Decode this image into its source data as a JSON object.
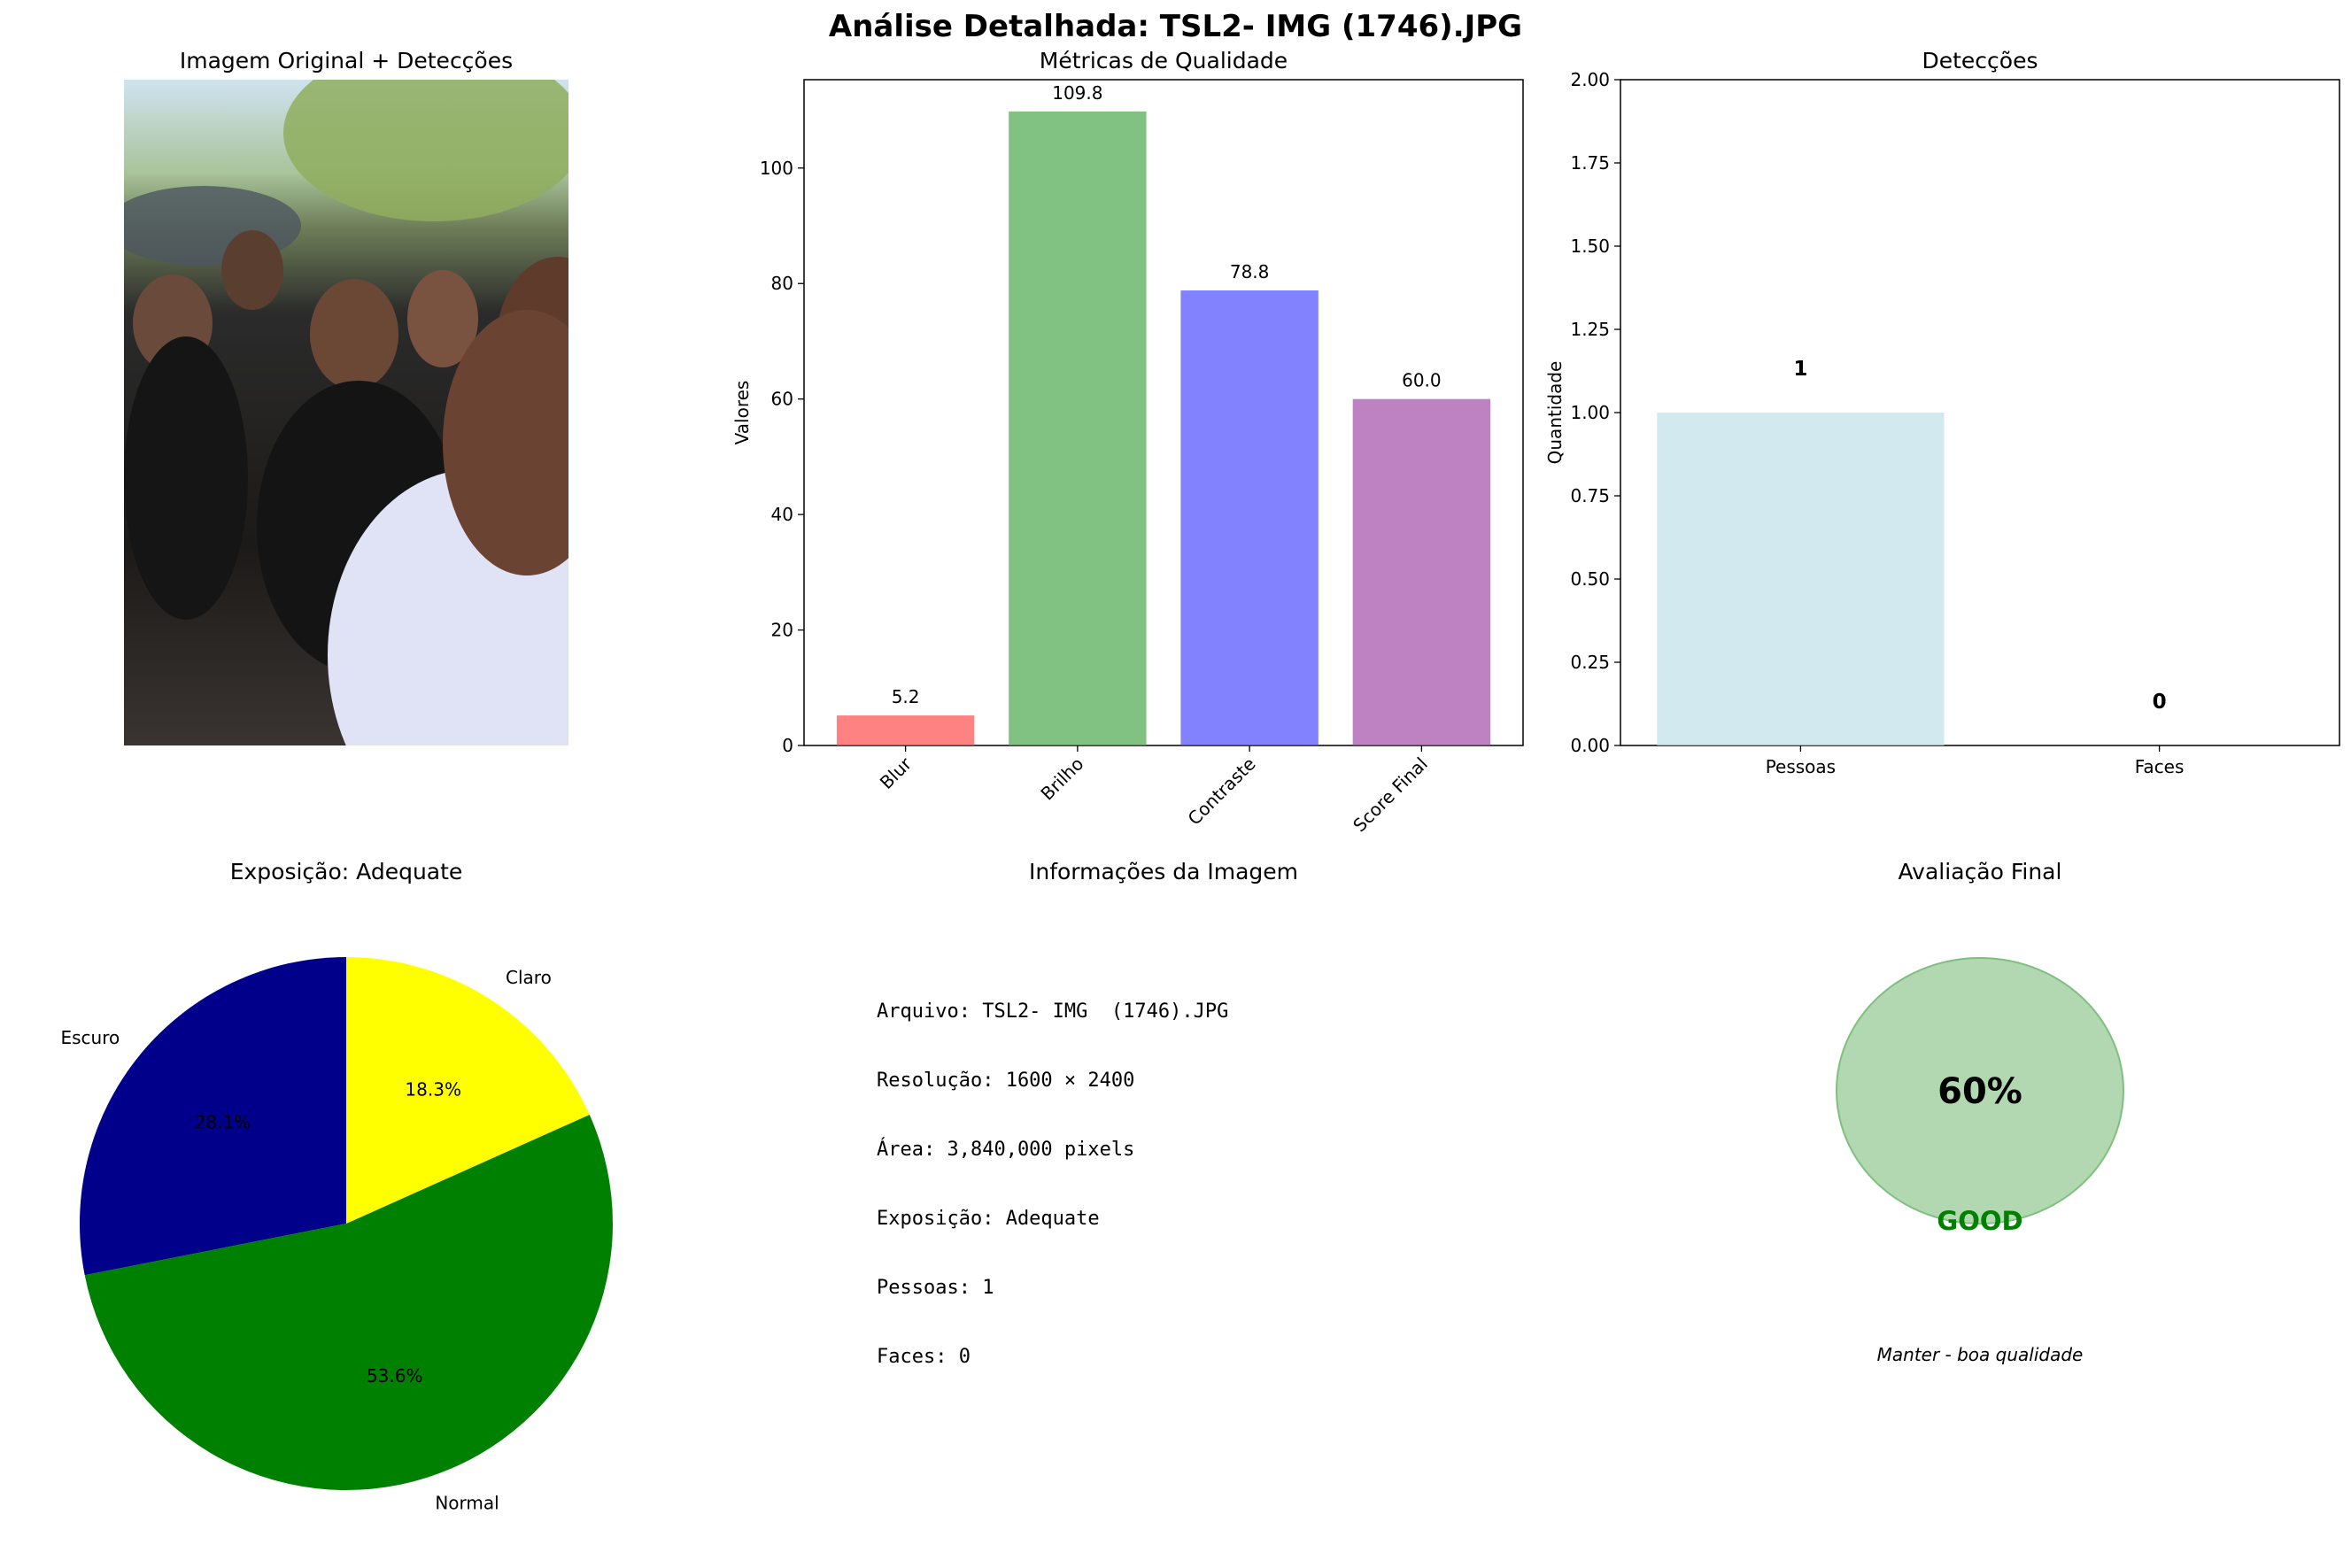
{
  "suptitle": "Análise Detalhada: TSL2- IMG  (1746).JPG",
  "panels": {
    "image": {
      "title": "Imagem Original + Detecções"
    },
    "quality": {
      "title": "Métricas de Qualidade"
    },
    "detections": {
      "title": "Detecções"
    },
    "exposure": {
      "title": "Exposição: Adequate"
    },
    "info": {
      "title": "Informações da Imagem"
    },
    "final": {
      "title": "Avaliação Final"
    }
  },
  "chart_data": [
    {
      "type": "bar",
      "title": "Métricas de Qualidade",
      "ylabel": "Valores",
      "categories": [
        "Blur",
        "Brilho",
        "Contraste",
        "Score Final"
      ],
      "values": [
        5.2,
        109.8,
        78.8,
        60.0
      ],
      "value_labels": [
        "5.2",
        "109.8",
        "78.8",
        "60.0"
      ],
      "colors": [
        "#ff4d4d",
        "#4ca64c",
        "#4d4dff",
        "#a24ca6"
      ],
      "ylim": [
        0,
        115.3
      ],
      "yticks": [
        0,
        20,
        40,
        60,
        80,
        100
      ]
    },
    {
      "type": "bar",
      "title": "Detecções",
      "ylabel": "Quantidade",
      "categories": [
        "Pessoas",
        "Faces"
      ],
      "values": [
        1,
        0
      ],
      "value_labels": [
        "1",
        "0"
      ],
      "colors": [
        "#bfdfea",
        "#f6c0c8"
      ],
      "ylim": [
        0,
        2
      ],
      "yticks": [
        "0.00",
        "0.25",
        "0.50",
        "0.75",
        "1.00",
        "1.25",
        "1.50",
        "1.75",
        "2.00"
      ]
    },
    {
      "type": "pie",
      "title": "Exposição: Adequate",
      "labels": [
        "Escuro",
        "Normal",
        "Claro"
      ],
      "values": [
        28.1,
        53.6,
        18.3
      ],
      "pct_labels": [
        "28.1%",
        "53.6%",
        "18.3%"
      ],
      "colors": [
        "#00008b",
        "#008000",
        "#ffff00"
      ]
    }
  ],
  "info_lines": [
    "Arquivo: TSL2- IMG  (1746).JPG",
    "Resolução: 1600 × 2400",
    "Área: 3,840,000 pixels",
    "Exposição: Adequate",
    "Pessoas: 1",
    "Faces: 0"
  ],
  "final": {
    "score": "60%",
    "score_fraction": 0.6,
    "grade": "GOOD",
    "grade_color": "#008000",
    "circle_color": "#b2d8b2",
    "circle_edge": "#7fbf7f",
    "recommendation": "Manter - boa qualidade"
  }
}
